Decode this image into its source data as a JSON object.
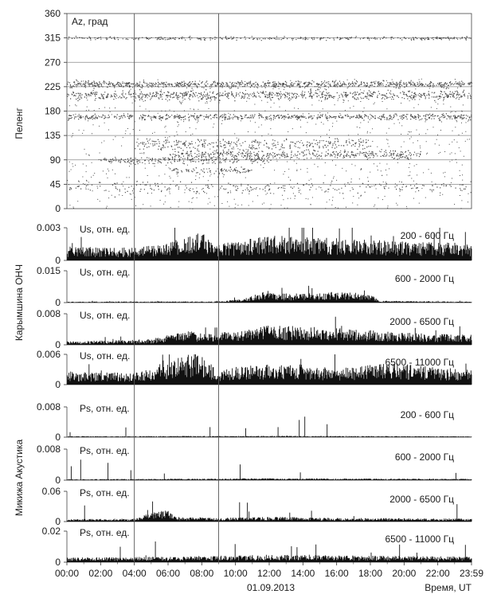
{
  "figure": {
    "date_label": "01.09.2013",
    "time_axis_label": "Время, UT",
    "time_ticks": [
      "00:00",
      "02:00",
      "04:00",
      "06:00",
      "08:00",
      "10:00",
      "12:00",
      "14:00",
      "16:00",
      "18:00",
      "20:00",
      "22:00",
      "23:59"
    ],
    "marker_times_hours": [
      4.0,
      9.0
    ],
    "group_labels": {
      "bearing": "Пеленг",
      "vlf": "Карымшина ОНЧ",
      "acoustic": "Микижа Акустика"
    }
  },
  "chart_data": [
    {
      "type": "scatter",
      "panel": "bearing",
      "series_label": "Az, град",
      "ylim": [
        0,
        360
      ],
      "yticks": [
        0,
        45,
        90,
        135,
        180,
        225,
        270,
        315,
        360
      ],
      "ytick_labels": [
        "0",
        "45",
        "90",
        "135",
        "180",
        "225",
        "270",
        "315",
        "360"
      ],
      "xlim_hours": [
        0,
        24
      ],
      "grid_y": true,
      "bands": [
        {
          "az": 315,
          "density": 0.35,
          "spread": 3,
          "t": [
            0,
            24
          ]
        },
        {
          "az": 230,
          "density": 0.9,
          "spread": 6,
          "t": [
            0,
            24
          ]
        },
        {
          "az": 210,
          "density": 0.85,
          "spread": 8,
          "t": [
            0,
            24
          ]
        },
        {
          "az": 170,
          "density": 0.7,
          "spread": 5,
          "t": [
            0,
            24
          ]
        },
        {
          "az": 120,
          "density": 0.6,
          "spread": 10,
          "t": [
            4,
            18
          ]
        },
        {
          "az": 100,
          "density": 0.75,
          "spread": 8,
          "t": [
            6,
            21
          ]
        },
        {
          "az": 90,
          "density": 0.5,
          "spread": 6,
          "t": [
            2,
            12
          ]
        },
        {
          "az": 70,
          "density": 0.45,
          "spread": 6,
          "t": [
            6,
            11
          ]
        },
        {
          "az": 40,
          "density": 0.25,
          "spread": 10,
          "t": [
            0,
            24
          ]
        }
      ]
    },
    {
      "type": "area",
      "panel": "vlf",
      "series_label": "Us, отн. ед.",
      "band_label": "200 - 600 Гц",
      "ylim": [
        0,
        0.003
      ],
      "ytick_labels": [
        "0.003",
        "0"
      ],
      "profile": [
        [
          0,
          0.0009
        ],
        [
          4,
          0.0008
        ],
        [
          6,
          0.0011
        ],
        [
          7,
          0.0015
        ],
        [
          8,
          0.0018
        ],
        [
          8.8,
          0.001
        ],
        [
          10,
          0.0012
        ],
        [
          12,
          0.0016
        ],
        [
          16,
          0.0014
        ],
        [
          20,
          0.0012
        ],
        [
          24,
          0.0011
        ]
      ]
    },
    {
      "type": "area",
      "panel": "vlf",
      "series_label": "Us, отн. ед.",
      "band_label": "600 - 2000 Гц",
      "ylim": [
        0,
        0.015
      ],
      "ytick_labels": [
        "0.015",
        "0"
      ],
      "profile": [
        [
          0,
          0.0003
        ],
        [
          9,
          0.0004
        ],
        [
          10.5,
          0.0012
        ],
        [
          11.8,
          0.004
        ],
        [
          12.5,
          0.003
        ],
        [
          14,
          0.003
        ],
        [
          16,
          0.0035
        ],
        [
          18,
          0.003
        ],
        [
          18.5,
          0.0006
        ],
        [
          24,
          0.0003
        ]
      ]
    },
    {
      "type": "area",
      "panel": "vlf",
      "series_label": "Us, отн. ед.",
      "band_label": "2000 - 6500 Гц",
      "ylim": [
        0,
        0.008
      ],
      "ytick_labels": [
        "0.008",
        "0"
      ],
      "profile": [
        [
          0,
          0.0006
        ],
        [
          5,
          0.001
        ],
        [
          7,
          0.0025
        ],
        [
          8.5,
          0.002
        ],
        [
          10,
          0.0025
        ],
        [
          12,
          0.0035
        ],
        [
          16,
          0.003
        ],
        [
          20,
          0.0022
        ],
        [
          24,
          0.0018
        ]
      ]
    },
    {
      "type": "area",
      "panel": "vlf",
      "series_label": "Us, отн. ед.",
      "band_label": "6500 - 11000 Гц",
      "ylim": [
        0,
        0.006
      ],
      "ytick_labels": [
        "0.006",
        "0"
      ],
      "profile": [
        [
          0,
          0.0018
        ],
        [
          4,
          0.0016
        ],
        [
          6,
          0.0028
        ],
        [
          7,
          0.0042
        ],
        [
          8,
          0.004
        ],
        [
          9,
          0.0018
        ],
        [
          10,
          0.0024
        ],
        [
          13,
          0.003
        ],
        [
          16,
          0.0022
        ],
        [
          19,
          0.003
        ],
        [
          21,
          0.0026
        ],
        [
          24,
          0.002
        ]
      ]
    },
    {
      "type": "area",
      "panel": "acoustic",
      "series_label": "Ps, отн. ед.",
      "band_label": "200 - 600 Гц",
      "ylim": [
        0,
        0.008
      ],
      "ytick_labels": [
        "0.008",
        "0"
      ],
      "profile": [
        [
          0,
          0.0002
        ],
        [
          12,
          0.0003
        ],
        [
          24,
          0.0002
        ]
      ]
    },
    {
      "type": "area",
      "panel": "acoustic",
      "series_label": "Ps, отн. ед.",
      "band_label": "600 - 2000 Гц",
      "ylim": [
        0,
        0.008
      ],
      "ytick_labels": [
        "0.008",
        "0"
      ],
      "profile": [
        [
          0,
          0.0002
        ],
        [
          12,
          0.0004
        ],
        [
          24,
          0.0003
        ]
      ]
    },
    {
      "type": "area",
      "panel": "acoustic",
      "series_label": "Ps, отн. ед.",
      "band_label": "2000 - 6500 Гц",
      "ylim": [
        0,
        0.06
      ],
      "ytick_labels": [
        "0.06",
        "0"
      ],
      "profile": [
        [
          0,
          0.004
        ],
        [
          4,
          0.005
        ],
        [
          5,
          0.015
        ],
        [
          6,
          0.02
        ],
        [
          6.5,
          0.008
        ],
        [
          9,
          0.006
        ],
        [
          12,
          0.008
        ],
        [
          16,
          0.006
        ],
        [
          24,
          0.005
        ]
      ]
    },
    {
      "type": "area",
      "panel": "acoustic",
      "series_label": "Ps, отн. ед.",
      "band_label": "6500 - 11000 Гц",
      "ylim": [
        0,
        0.02
      ],
      "ytick_labels": [
        "0.02",
        "0"
      ],
      "profile": [
        [
          0,
          0.0025
        ],
        [
          6,
          0.003
        ],
        [
          12,
          0.004
        ],
        [
          18,
          0.0035
        ],
        [
          24,
          0.003
        ]
      ]
    }
  ]
}
